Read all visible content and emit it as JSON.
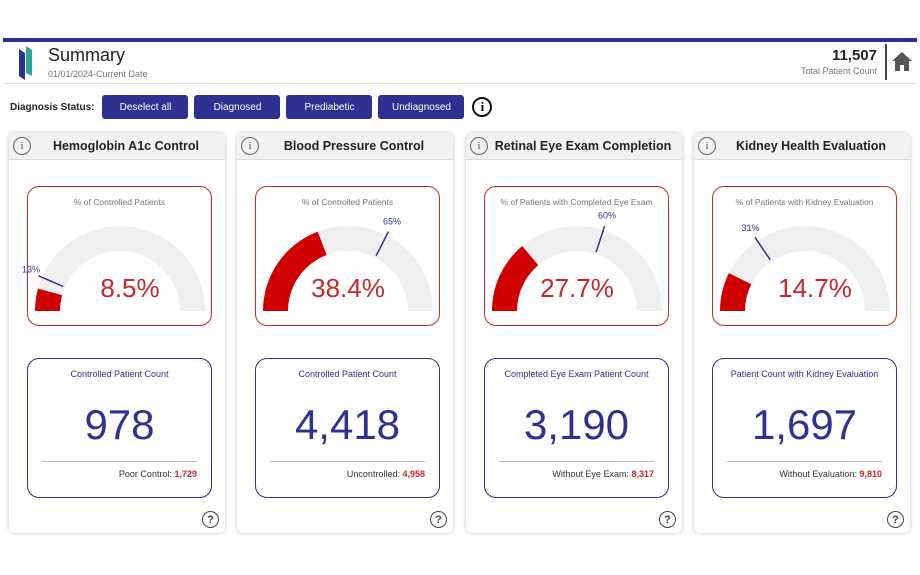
{
  "header": {
    "title": "Summary",
    "subtitle": "01/01/2024-Current Date",
    "total_value": "11,507",
    "total_label": "Total Patient Count"
  },
  "filters": {
    "label": "Diagnosis Status:",
    "buttons": [
      "Deselect all",
      "Diagnosed",
      "Prediabetic",
      "Undiagnosed"
    ]
  },
  "colors": {
    "accent": "#2e3192",
    "red": "#d00000",
    "track": "#efefef"
  },
  "cards": [
    {
      "title": "Hemoglobin A1c Control",
      "gauge_caption": "% of Controlled Patients",
      "gauge_value": 8.5,
      "gauge_value_label": "8.5%",
      "target": 13,
      "target_label": "13%",
      "count_caption": "Controlled Patient Count",
      "count": "978",
      "foot_label": "Poor Control:",
      "foot_value": "1,729"
    },
    {
      "title": "Blood Pressure Control",
      "gauge_caption": "% of Controlled Patients",
      "gauge_value": 38.4,
      "gauge_value_label": "38.4%",
      "target": 65,
      "target_label": "65%",
      "count_caption": "Controlled Patient Count",
      "count": "4,418",
      "foot_label": "Uncontrolled:",
      "foot_value": "4,958"
    },
    {
      "title": "Retinal Eye Exam Completion",
      "gauge_caption": "% of Patients with Completed Eye Exam",
      "gauge_value": 27.7,
      "gauge_value_label": "27.7%",
      "target": 60,
      "target_label": "60%",
      "count_caption": "Completed Eye Exam Patient Count",
      "count": "3,190",
      "foot_label": "Without Eye Exam:",
      "foot_value": "8,317"
    },
    {
      "title": "Kidney Health Evaluation",
      "gauge_caption": "% of Patients with Kidney Evaluation",
      "gauge_value": 14.7,
      "gauge_value_label": "14.7%",
      "target": 31,
      "target_label": "31%",
      "count_caption": "Patient Count with Kidney Evaluation",
      "count": "1,697",
      "foot_label": "Without Evaluation:",
      "foot_value": "9,810"
    }
  ]
}
